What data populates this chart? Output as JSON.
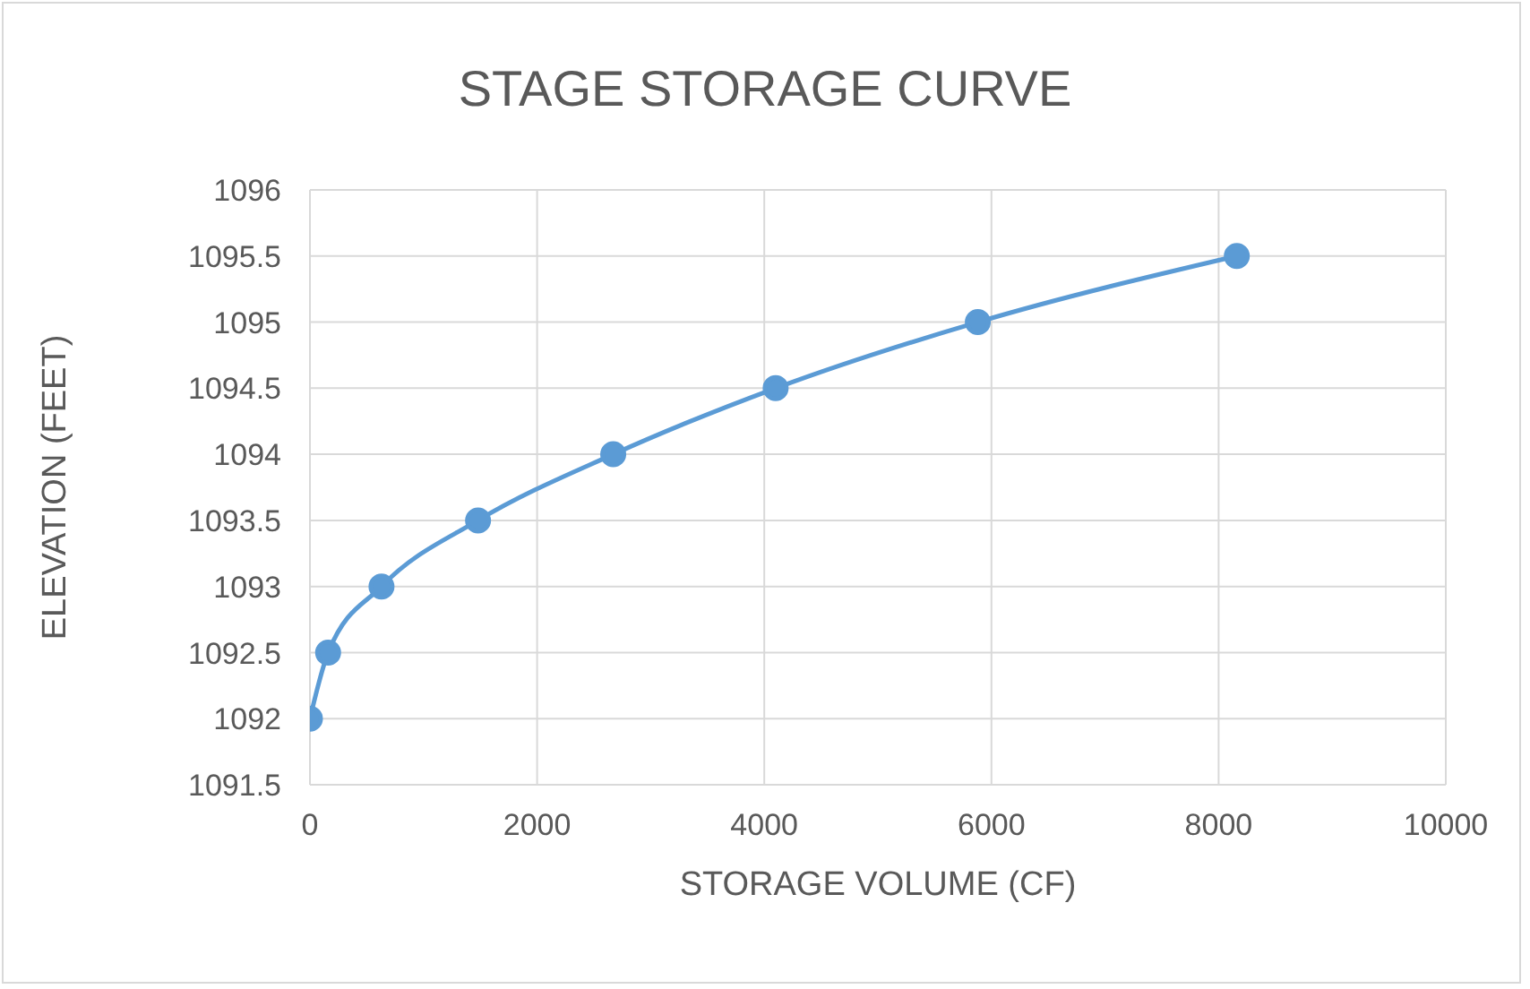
{
  "chart_data": {
    "type": "line",
    "title": "STAGE STORAGE CURVE",
    "xlabel": "STORAGE VOLUME (CF)",
    "ylabel": "ELEVATION (FEET)",
    "x": [
      0,
      160,
      630,
      1480,
      2670,
      4100,
      5880,
      8160
    ],
    "series": [
      {
        "color": "#5b9bd5",
        "values": [
          1092,
          1092.5,
          1093,
          1093.5,
          1094,
          1094.5,
          1095,
          1095.5
        ]
      }
    ],
    "xlim": [
      0,
      10000
    ],
    "xticks": [
      0,
      2000,
      4000,
      6000,
      8000,
      10000
    ],
    "ylim": [
      1091.5,
      1096
    ],
    "yticks": [
      1091.5,
      1092,
      1092.5,
      1093,
      1093.5,
      1094,
      1094.5,
      1095,
      1095.5,
      1096
    ],
    "grid": true,
    "marker": "circle",
    "line_style": "solid",
    "legend": false
  }
}
